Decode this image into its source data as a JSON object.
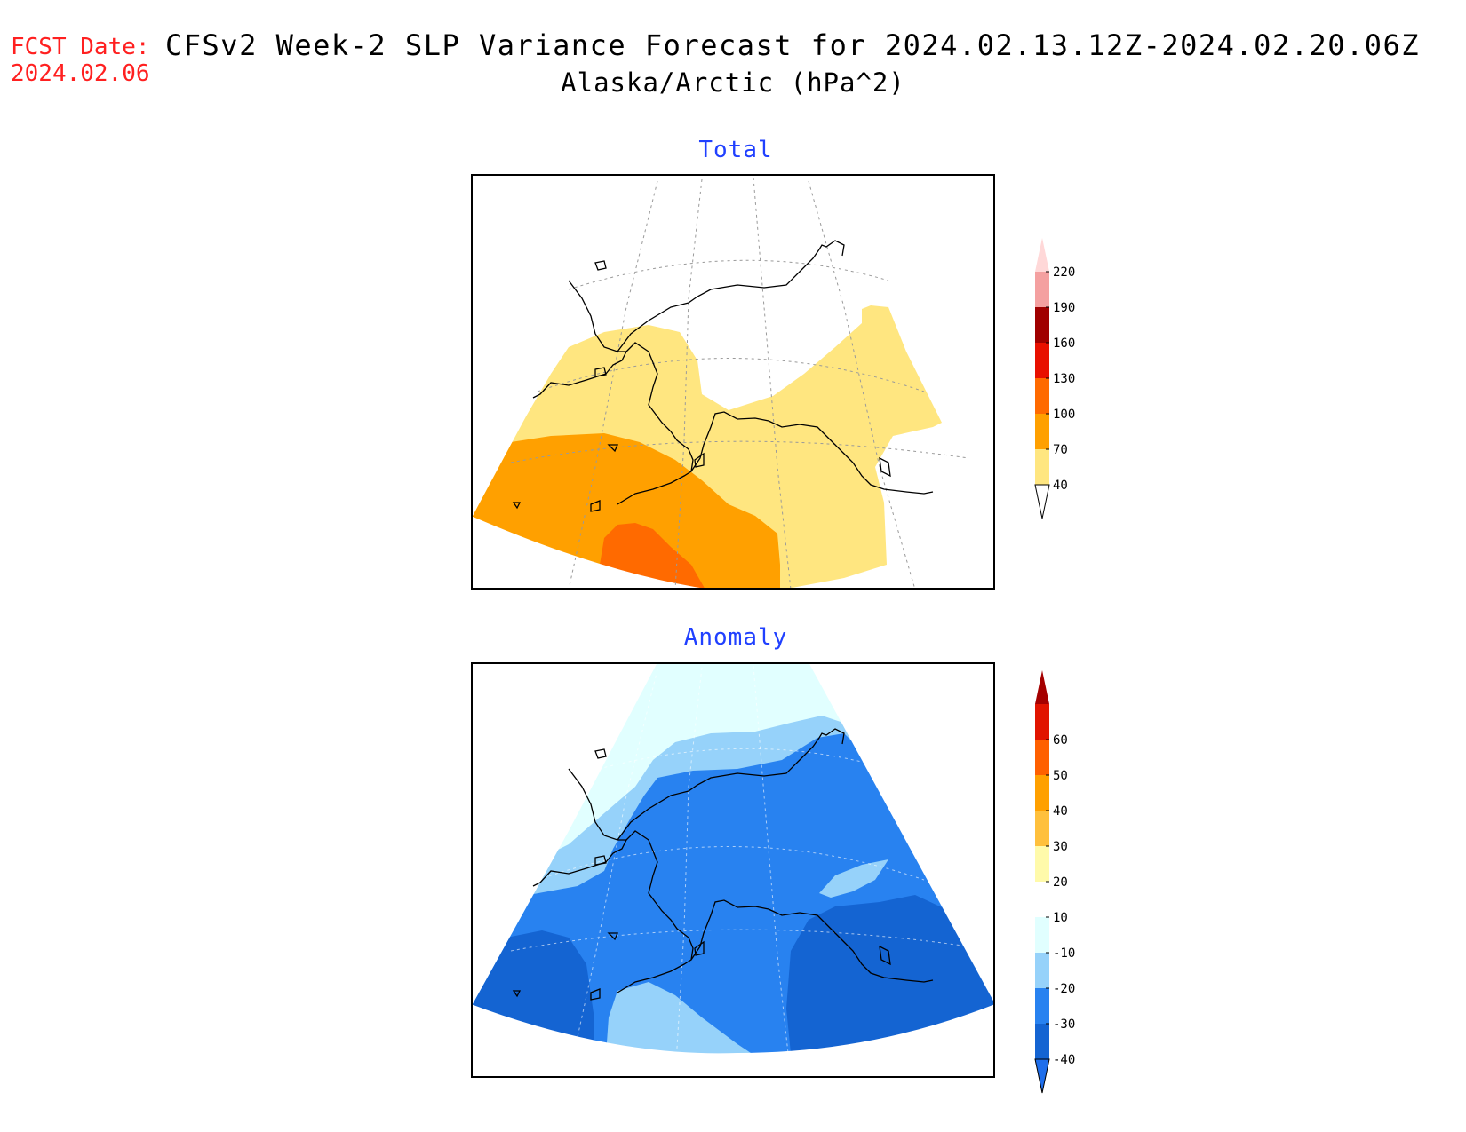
{
  "header": {
    "fcst_label": "FCST Date:",
    "fcst_date": "2024.02.06",
    "title": "CFSv2 Week-2 SLP Variance Forecast for 2024.02.13.12Z-2024.02.20.06Z",
    "subtitle": "Alaska/Arctic (hPa^2)"
  },
  "panels": [
    {
      "title": "Total",
      "colorbar": {
        "labels": [
          "40",
          "70",
          "100",
          "130",
          "160",
          "190",
          "220"
        ],
        "colors": [
          "#ffe680",
          "#ffa000",
          "#ff6a00",
          "#e81000",
          "#a00000",
          "#f4a0a0",
          "#ffd8d8"
        ],
        "low_color": "#ffffff"
      }
    },
    {
      "title": "Anomaly",
      "colorbar": {
        "labels": [
          "-40",
          "-30",
          "-20",
          "-10",
          "10",
          "20",
          "30",
          "40",
          "50",
          "60"
        ],
        "colors": [
          "#1464d2",
          "#2882f0",
          "#96d2fa",
          "#e1ffff",
          "#ffffff",
          "#fffaaa",
          "#ffc03c",
          "#ffa000",
          "#ff6000",
          "#e11400",
          "#a50000"
        ],
        "low_color": "#1e6eeb"
      }
    }
  ]
}
